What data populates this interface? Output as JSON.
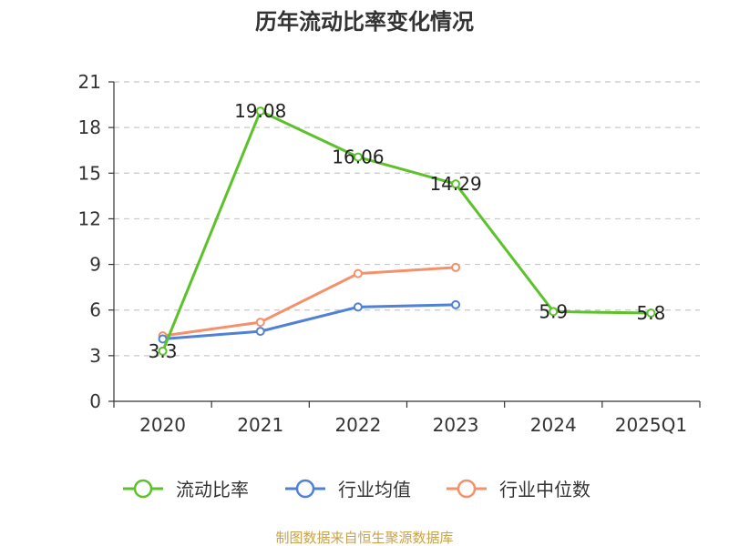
{
  "chart_data": {
    "type": "line",
    "title": "历年流动比率变化情况",
    "categories": [
      "2020",
      "2021",
      "2022",
      "2023",
      "2024",
      "2025Q1"
    ],
    "ylim": [
      0,
      21
    ],
    "yticks": [
      0,
      3,
      6,
      9,
      12,
      15,
      18,
      21
    ],
    "grid": true,
    "legend_position": "bottom",
    "series": [
      {
        "name": "流动比率",
        "color": "#5cc22a",
        "values": [
          3.3,
          19.08,
          16.06,
          14.29,
          5.9,
          5.8
        ],
        "labels": [
          "3.3",
          "19.08",
          "16.06",
          "14.29",
          "5.9",
          "5.8"
        ]
      },
      {
        "name": "行业均值",
        "color": "#4f81d6",
        "values": [
          4.1,
          4.6,
          6.2,
          6.35,
          null,
          null
        ]
      },
      {
        "name": "行业中位数",
        "color": "#f4906a",
        "values": [
          4.3,
          5.2,
          8.4,
          8.8,
          null,
          null
        ]
      }
    ]
  },
  "source_text": "制图数据来自恒生聚源数据库"
}
